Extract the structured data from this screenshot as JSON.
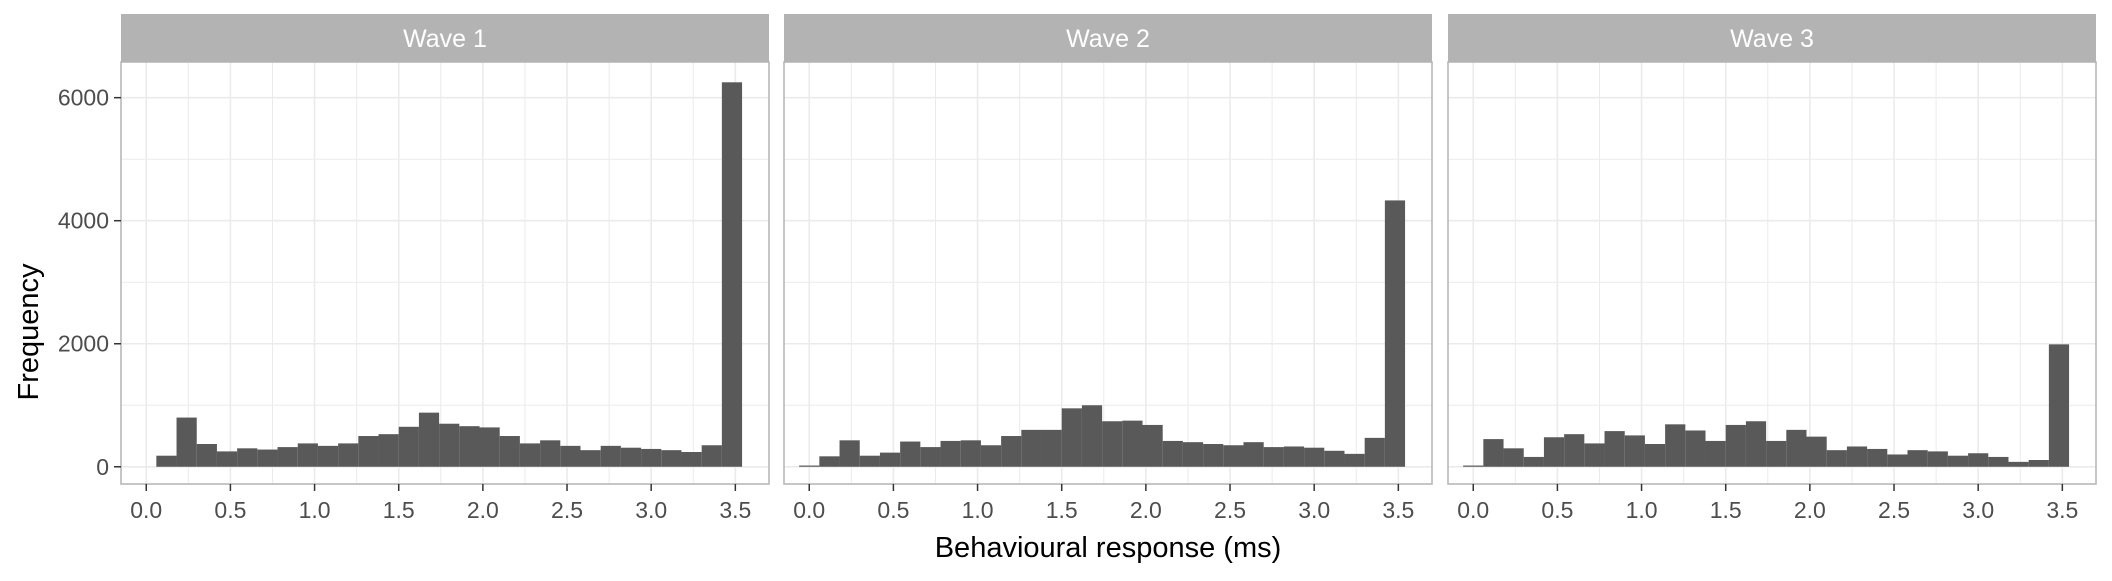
{
  "chart_data": {
    "type": "bar",
    "xlabel": "Behavioural response (ms)",
    "ylabel": "Frequency",
    "xlim": [
      -0.15,
      3.7
    ],
    "ylim": [
      -280,
      6580
    ],
    "bin_width": 0.12,
    "x_ticks": [
      "0.0",
      "0.5",
      "1.0",
      "1.5",
      "2.0",
      "2.5",
      "3.0",
      "3.5"
    ],
    "y_ticks": [
      "0",
      "2000",
      "4000",
      "6000"
    ],
    "grid": true,
    "colors": {
      "bar": "#595959",
      "strip": "#b3b3b3",
      "grid": "#ebebeb",
      "panel_border": "#b3b3b3"
    },
    "panels": [
      {
        "title": "Wave 1",
        "bins": [
          {
            "x": 0.12,
            "y": 180
          },
          {
            "x": 0.24,
            "y": 800
          },
          {
            "x": 0.36,
            "y": 370
          },
          {
            "x": 0.48,
            "y": 250
          },
          {
            "x": 0.6,
            "y": 300
          },
          {
            "x": 0.72,
            "y": 280
          },
          {
            "x": 0.84,
            "y": 320
          },
          {
            "x": 0.96,
            "y": 380
          },
          {
            "x": 1.08,
            "y": 340
          },
          {
            "x": 1.2,
            "y": 380
          },
          {
            "x": 1.32,
            "y": 500
          },
          {
            "x": 1.44,
            "y": 530
          },
          {
            "x": 1.56,
            "y": 650
          },
          {
            "x": 1.68,
            "y": 880
          },
          {
            "x": 1.8,
            "y": 700
          },
          {
            "x": 1.92,
            "y": 660
          },
          {
            "x": 2.04,
            "y": 640
          },
          {
            "x": 2.16,
            "y": 500
          },
          {
            "x": 2.28,
            "y": 380
          },
          {
            "x": 2.4,
            "y": 430
          },
          {
            "x": 2.52,
            "y": 340
          },
          {
            "x": 2.64,
            "y": 270
          },
          {
            "x": 2.76,
            "y": 340
          },
          {
            "x": 2.88,
            "y": 310
          },
          {
            "x": 3.0,
            "y": 290
          },
          {
            "x": 3.12,
            "y": 270
          },
          {
            "x": 3.24,
            "y": 240
          },
          {
            "x": 3.36,
            "y": 350
          },
          {
            "x": 3.48,
            "y": 6250
          }
        ]
      },
      {
        "title": "Wave 2",
        "bins": [
          {
            "x": 0.0,
            "y": 20
          },
          {
            "x": 0.12,
            "y": 170
          },
          {
            "x": 0.24,
            "y": 430
          },
          {
            "x": 0.36,
            "y": 180
          },
          {
            "x": 0.48,
            "y": 230
          },
          {
            "x": 0.6,
            "y": 410
          },
          {
            "x": 0.72,
            "y": 320
          },
          {
            "x": 0.84,
            "y": 420
          },
          {
            "x": 0.96,
            "y": 430
          },
          {
            "x": 1.08,
            "y": 350
          },
          {
            "x": 1.2,
            "y": 500
          },
          {
            "x": 1.32,
            "y": 600
          },
          {
            "x": 1.44,
            "y": 600
          },
          {
            "x": 1.56,
            "y": 950
          },
          {
            "x": 1.68,
            "y": 1000
          },
          {
            "x": 1.8,
            "y": 740
          },
          {
            "x": 1.92,
            "y": 750
          },
          {
            "x": 2.04,
            "y": 680
          },
          {
            "x": 2.16,
            "y": 420
          },
          {
            "x": 2.28,
            "y": 400
          },
          {
            "x": 2.4,
            "y": 370
          },
          {
            "x": 2.52,
            "y": 350
          },
          {
            "x": 2.64,
            "y": 400
          },
          {
            "x": 2.76,
            "y": 320
          },
          {
            "x": 2.88,
            "y": 330
          },
          {
            "x": 3.0,
            "y": 310
          },
          {
            "x": 3.12,
            "y": 260
          },
          {
            "x": 3.24,
            "y": 210
          },
          {
            "x": 3.36,
            "y": 470
          },
          {
            "x": 3.48,
            "y": 4330
          }
        ]
      },
      {
        "title": "Wave 3",
        "bins": [
          {
            "x": 0.0,
            "y": 20
          },
          {
            "x": 0.12,
            "y": 450
          },
          {
            "x": 0.24,
            "y": 300
          },
          {
            "x": 0.36,
            "y": 160
          },
          {
            "x": 0.48,
            "y": 480
          },
          {
            "x": 0.6,
            "y": 530
          },
          {
            "x": 0.72,
            "y": 380
          },
          {
            "x": 0.84,
            "y": 580
          },
          {
            "x": 0.96,
            "y": 510
          },
          {
            "x": 1.08,
            "y": 370
          },
          {
            "x": 1.2,
            "y": 690
          },
          {
            "x": 1.32,
            "y": 590
          },
          {
            "x": 1.44,
            "y": 420
          },
          {
            "x": 1.56,
            "y": 680
          },
          {
            "x": 1.68,
            "y": 740
          },
          {
            "x": 1.8,
            "y": 420
          },
          {
            "x": 1.92,
            "y": 600
          },
          {
            "x": 2.04,
            "y": 490
          },
          {
            "x": 2.16,
            "y": 270
          },
          {
            "x": 2.28,
            "y": 330
          },
          {
            "x": 2.4,
            "y": 290
          },
          {
            "x": 2.52,
            "y": 200
          },
          {
            "x": 2.64,
            "y": 270
          },
          {
            "x": 2.76,
            "y": 250
          },
          {
            "x": 2.88,
            "y": 180
          },
          {
            "x": 3.0,
            "y": 220
          },
          {
            "x": 3.12,
            "y": 160
          },
          {
            "x": 3.24,
            "y": 80
          },
          {
            "x": 3.36,
            "y": 110
          },
          {
            "x": 3.48,
            "y": 1990
          }
        ]
      }
    ]
  }
}
